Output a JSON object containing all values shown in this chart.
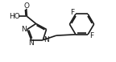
{
  "bg_color": "#ffffff",
  "line_color": "#1a1a1a",
  "line_width": 1.2,
  "font_size": 6.5,
  "xlim": [
    0,
    10
  ],
  "ylim": [
    0,
    5.5
  ]
}
